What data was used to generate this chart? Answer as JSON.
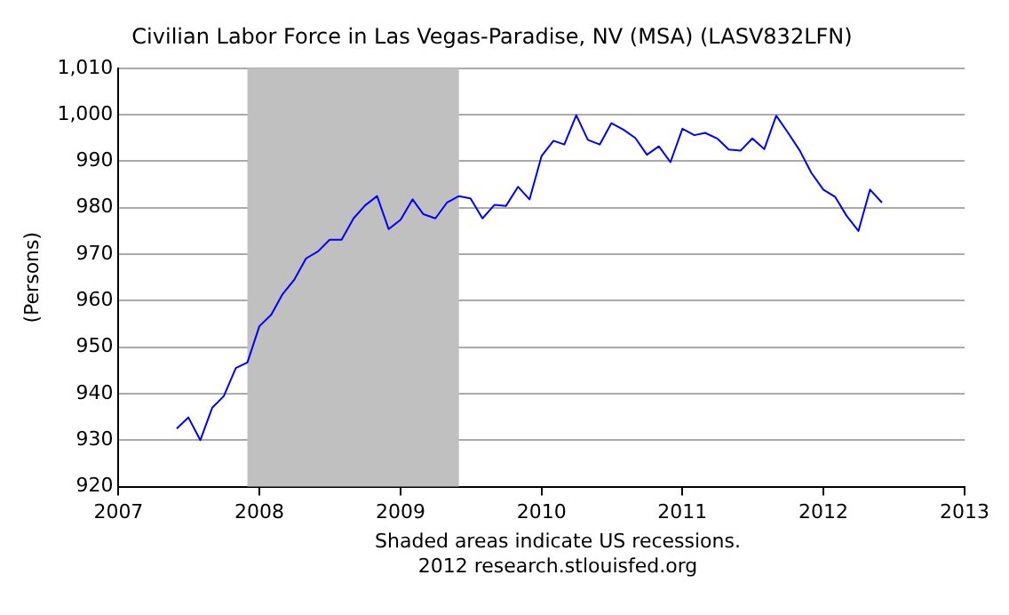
{
  "chart_data": {
    "type": "line",
    "title": "Civilian Labor Force in Las Vegas-Paradise, NV (MSA) (LASV832LFN)",
    "ylabel": "(Persons)",
    "annotations": [
      "Shaded areas indicate US recessions.",
      "2012 research.stlouisfed.org"
    ],
    "x": [
      "2007-06",
      "2007-07",
      "2007-08",
      "2007-09",
      "2007-10",
      "2007-11",
      "2007-12",
      "2008-01",
      "2008-02",
      "2008-03",
      "2008-04",
      "2008-05",
      "2008-06",
      "2008-07",
      "2008-08",
      "2008-09",
      "2008-10",
      "2008-11",
      "2008-12",
      "2009-01",
      "2009-02",
      "2009-03",
      "2009-04",
      "2009-05",
      "2009-06",
      "2009-07",
      "2009-08",
      "2009-09",
      "2009-10",
      "2009-11",
      "2009-12",
      "2010-01",
      "2010-02",
      "2010-03",
      "2010-04",
      "2010-05",
      "2010-06",
      "2010-07",
      "2010-08",
      "2010-09",
      "2010-10",
      "2010-11",
      "2010-12",
      "2011-01",
      "2011-02",
      "2011-03",
      "2011-04",
      "2011-05",
      "2011-06",
      "2011-07",
      "2011-08",
      "2011-09",
      "2011-10",
      "2011-11",
      "2011-12",
      "2012-01",
      "2012-02",
      "2012-03",
      "2012-04",
      "2012-05",
      "2012-06"
    ],
    "series": [
      {
        "color": "#0000ff",
        "values": [
          932.5,
          934.9,
          930,
          937,
          939.5,
          945.5,
          946.7,
          954.5,
          957,
          961.4,
          964.6,
          969.1,
          970.6,
          973.1,
          973.1,
          977.7,
          980.5,
          982.5,
          975.4,
          977.4,
          981.8,
          978.6,
          977.7,
          981.1,
          982.5,
          982,
          977.7,
          980.6,
          980.4,
          984.5,
          981.8,
          991.1,
          994.4,
          993.6,
          999.9,
          994.6,
          993.6,
          998.2,
          996.8,
          995,
          991.4,
          993.2,
          989.8,
          997,
          995.6,
          996.1,
          994.9,
          992.5,
          992.3,
          994.9,
          992.6,
          999.8,
          996.2,
          992.3,
          987.5,
          983.9,
          982.3,
          978.3,
          975,
          983.9,
          981.1
        ]
      }
    ],
    "xlim": [
      "2007",
      "2013"
    ],
    "xticks": [
      "2007",
      "2008",
      "2009",
      "2010",
      "2011",
      "2012",
      "2013"
    ],
    "ylim": [
      920,
      1010
    ],
    "yticks": [
      920,
      930,
      940,
      950,
      960,
      970,
      980,
      990,
      {
        "value": 1000,
        "label": "1,000"
      },
      {
        "value": 1010,
        "label": "1,010"
      }
    ],
    "bands": [
      {
        "axis": "x",
        "from": "2007-12",
        "to": "2009-06",
        "color": "#c0c0c0"
      }
    ],
    "grid": "y",
    "legend": false,
    "marker": "none",
    "line_style": "solid"
  }
}
